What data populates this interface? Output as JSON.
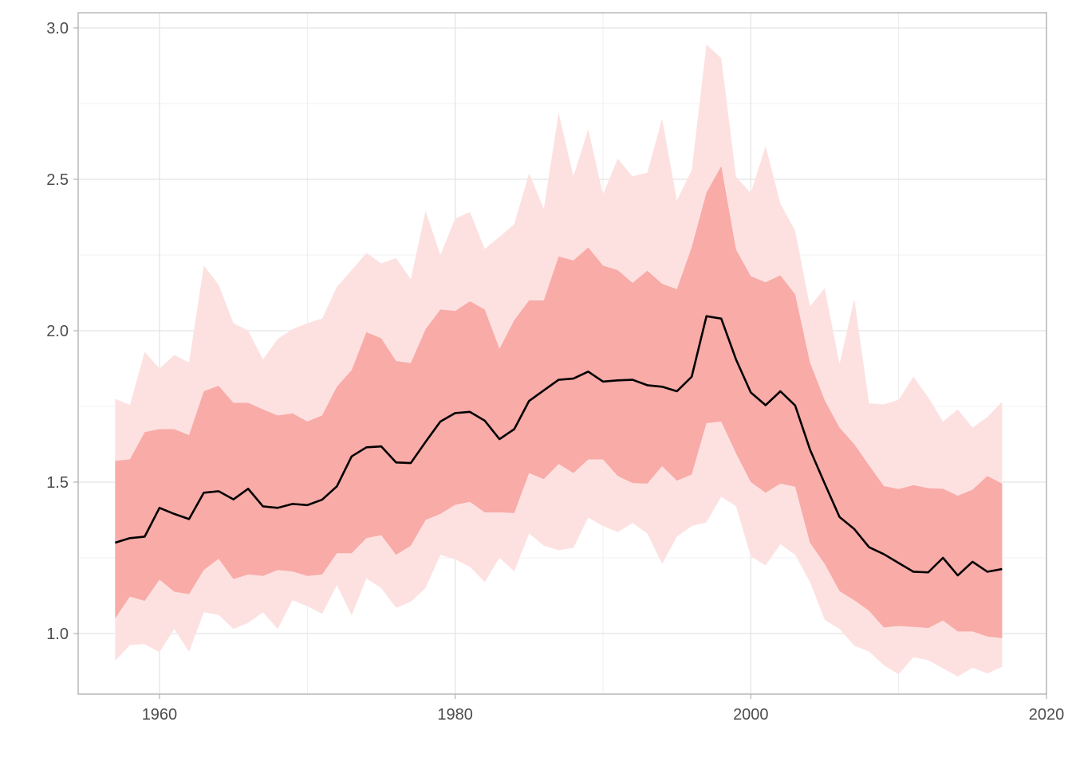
{
  "chart_data": {
    "type": "area",
    "title": "",
    "xlabel": "",
    "ylabel": "",
    "xlim": [
      1954.5,
      2020
    ],
    "ylim": [
      0.8,
      3.05
    ],
    "grid": true,
    "x_ticks": [
      1960,
      1980,
      2000,
      2020
    ],
    "y_ticks": [
      1.0,
      1.5,
      2.0,
      2.5,
      3.0
    ],
    "x_tick_labels": [
      "1960",
      "1980",
      "2000",
      "2020"
    ],
    "y_tick_labels": [
      "1.0",
      "1.5",
      "2.0",
      "2.5",
      "3.0"
    ],
    "colors": {
      "outer_band": "#fde1e1",
      "inner_band": "#f8aba7",
      "line": "#000000",
      "grid": "#e3e3e3",
      "axis": "#b3b3b3"
    },
    "x": [
      1957,
      1958,
      1959,
      1960,
      1961,
      1962,
      1963,
      1964,
      1965,
      1966,
      1967,
      1968,
      1969,
      1970,
      1971,
      1972,
      1973,
      1974,
      1975,
      1976,
      1977,
      1978,
      1979,
      1980,
      1981,
      1982,
      1983,
      1984,
      1985,
      1986,
      1987,
      1988,
      1989,
      1990,
      1991,
      1992,
      1993,
      1994,
      1995,
      1996,
      1997,
      1998,
      1999,
      2000,
      2001,
      2002,
      2003,
      2004,
      2005,
      2006,
      2007,
      2008,
      2009,
      2010,
      2011,
      2012,
      2013,
      2014,
      2015,
      2016,
      2017
    ],
    "series": [
      {
        "role": "median",
        "values": [
          1.3,
          1.315,
          1.32,
          1.415,
          1.395,
          1.378,
          1.465,
          1.47,
          1.443,
          1.478,
          1.42,
          1.415,
          1.428,
          1.424,
          1.442,
          1.486,
          1.585,
          1.615,
          1.618,
          1.565,
          1.563,
          1.633,
          1.7,
          1.728,
          1.732,
          1.703,
          1.642,
          1.675,
          1.768,
          1.803,
          1.838,
          1.842,
          1.865,
          1.832,
          1.836,
          1.838,
          1.82,
          1.815,
          1.8,
          1.848,
          2.048,
          2.04,
          1.905,
          1.796,
          1.754,
          1.8,
          1.753,
          1.608,
          1.495,
          1.385,
          1.345,
          1.285,
          1.262,
          1.233,
          1.204,
          1.202,
          1.25,
          1.192,
          1.237,
          1.204,
          1.213
        ]
      },
      {
        "role": "inner-upper",
        "values": [
          1.57,
          1.575,
          1.665,
          1.675,
          1.675,
          1.655,
          1.8,
          1.818,
          1.762,
          1.762,
          1.74,
          1.72,
          1.727,
          1.7,
          1.72,
          1.815,
          1.87,
          1.995,
          1.975,
          1.9,
          1.893,
          2.005,
          2.07,
          2.065,
          2.097,
          2.07,
          1.94,
          2.035,
          2.1,
          2.1,
          2.245,
          2.232,
          2.275,
          2.215,
          2.2,
          2.158,
          2.198,
          2.155,
          2.137,
          2.275,
          2.456,
          2.543,
          2.268,
          2.18,
          2.16,
          2.183,
          2.12,
          1.895,
          1.77,
          1.68,
          1.625,
          1.555,
          1.487,
          1.477,
          1.49,
          1.48,
          1.478,
          1.455,
          1.475,
          1.52,
          1.495
        ]
      },
      {
        "role": "inner-lower",
        "values": [
          1.05,
          1.122,
          1.108,
          1.178,
          1.138,
          1.13,
          1.21,
          1.247,
          1.18,
          1.195,
          1.19,
          1.21,
          1.205,
          1.19,
          1.195,
          1.265,
          1.265,
          1.315,
          1.325,
          1.26,
          1.29,
          1.375,
          1.395,
          1.425,
          1.435,
          1.4,
          1.4,
          1.398,
          1.53,
          1.51,
          1.56,
          1.53,
          1.575,
          1.575,
          1.52,
          1.497,
          1.495,
          1.553,
          1.505,
          1.525,
          1.695,
          1.7,
          1.595,
          1.5,
          1.465,
          1.495,
          1.485,
          1.3,
          1.23,
          1.14,
          1.11,
          1.075,
          1.02,
          1.025,
          1.022,
          1.018,
          1.043,
          1.007,
          1.007,
          0.99,
          0.985
        ]
      },
      {
        "role": "outer-upper",
        "values": [
          1.775,
          1.755,
          1.93,
          1.875,
          1.92,
          1.895,
          2.215,
          2.152,
          2.025,
          2.0,
          1.905,
          1.973,
          2.005,
          2.025,
          2.04,
          2.145,
          2.2,
          2.257,
          2.222,
          2.24,
          2.17,
          2.396,
          2.25,
          2.37,
          2.392,
          2.27,
          2.31,
          2.352,
          2.52,
          2.402,
          2.72,
          2.51,
          2.665,
          2.45,
          2.568,
          2.51,
          2.522,
          2.7,
          2.43,
          2.53,
          2.945,
          2.9,
          2.508,
          2.455,
          2.61,
          2.42,
          2.33,
          2.08,
          2.14,
          1.89,
          2.105,
          1.76,
          1.757,
          1.772,
          1.848,
          1.78,
          1.7,
          1.74,
          1.68,
          1.715,
          1.765
        ]
      },
      {
        "role": "outer-lower",
        "values": [
          0.91,
          0.962,
          0.965,
          0.938,
          1.015,
          0.94,
          1.07,
          1.062,
          1.015,
          1.035,
          1.07,
          1.015,
          1.11,
          1.09,
          1.065,
          1.16,
          1.06,
          1.182,
          1.15,
          1.085,
          1.105,
          1.15,
          1.26,
          1.245,
          1.22,
          1.17,
          1.25,
          1.205,
          1.33,
          1.29,
          1.275,
          1.283,
          1.383,
          1.355,
          1.335,
          1.365,
          1.33,
          1.23,
          1.32,
          1.355,
          1.367,
          1.452,
          1.42,
          1.255,
          1.225,
          1.295,
          1.26,
          1.17,
          1.045,
          1.015,
          0.96,
          0.94,
          0.895,
          0.865,
          0.922,
          0.912,
          0.885,
          0.858,
          0.887,
          0.868,
          0.89
        ]
      }
    ]
  }
}
